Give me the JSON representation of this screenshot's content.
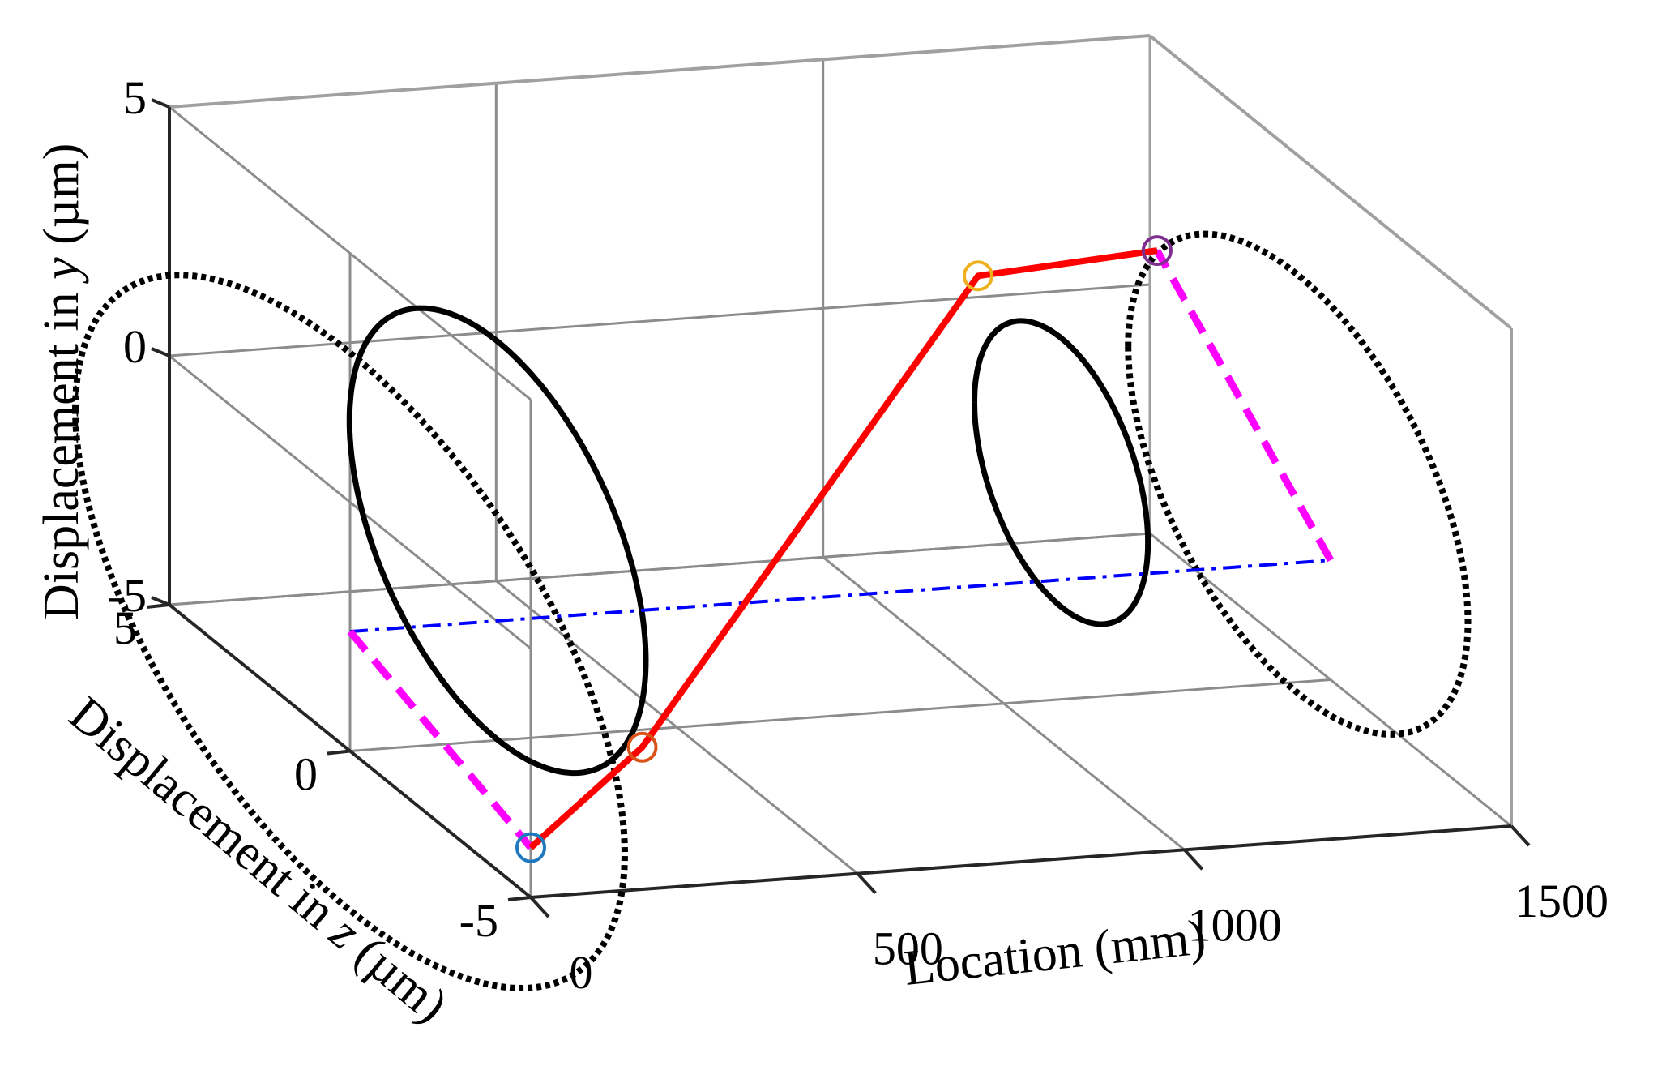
{
  "chart_data": {
    "type": "line3d",
    "title": "",
    "axes": {
      "x": {
        "label": "Location (mm)",
        "range": [
          0,
          1500
        ],
        "ticks": [
          0,
          500,
          1000,
          1500
        ],
        "tick_labels": [
          "0",
          "500",
          "1000",
          "1500"
        ]
      },
      "y": {
        "label_prefix": "Displacement in ",
        "label_var": "y",
        "label_suffix": " (µm)",
        "range": [
          -5,
          5
        ],
        "ticks": [
          -5,
          0,
          5
        ],
        "tick_labels": [
          "-5",
          "0",
          "5"
        ]
      },
      "z": {
        "label_prefix": "Displacement in ",
        "label_var": "z",
        "label_suffix": " (µm)",
        "range": [
          -5,
          5
        ],
        "ticks": [
          -5,
          0,
          5
        ],
        "tick_labels": [
          "-5",
          "0",
          "5"
        ]
      }
    },
    "grid": true,
    "series": [
      {
        "id": "centerline",
        "style": "dash-dot",
        "color": "#0000ff",
        "points": [
          [
            0,
            -2.6,
            0
          ],
          [
            1500,
            -2.6,
            0
          ]
        ]
      },
      {
        "id": "magenta-left",
        "style": "dashed",
        "color": "#ff00ff",
        "points": [
          [
            0,
            -2.6,
            0
          ],
          [
            0,
            -4.0,
            -5.0
          ]
        ]
      },
      {
        "id": "magenta-right",
        "style": "dashed",
        "color": "#ff00ff",
        "points": [
          [
            1500,
            -2.6,
            0
          ],
          [
            1500,
            0.8,
            4.8
          ]
        ]
      },
      {
        "id": "deflection",
        "style": "solid",
        "color": "#ff0000",
        "points": [
          [
            0,
            -4.0,
            -5.0
          ],
          [
            270,
            -3.3,
            -3.2
          ],
          [
            1110,
            1.9,
            2.7
          ],
          [
            1500,
            0.8,
            4.8
          ]
        ]
      }
    ],
    "orbits": [
      {
        "id": "orbit-0",
        "x": 0,
        "style": "dotted",
        "center": [
          -2.6,
          0
        ],
        "ry": 5.6,
        "rz": 7.6,
        "color": "#000000"
      },
      {
        "id": "orbit-270",
        "x": 270,
        "style": "solid",
        "center": [
          -1.5,
          0.8
        ],
        "ry": 4.0,
        "rz": 4.1,
        "color": "#000000"
      },
      {
        "id": "orbit-1110",
        "x": 1110,
        "style": "solid",
        "center": [
          -0.7,
          0.4
        ],
        "ry": 2.7,
        "rz": 2.4,
        "color": "#000000"
      },
      {
        "id": "orbit-1500",
        "x": 1500,
        "style": "dotted",
        "center": [
          -1.6,
          0.9
        ],
        "ry": 4.2,
        "rz": 4.7,
        "color": "#000000"
      }
    ],
    "markers": [
      {
        "x": 0,
        "y": -4.0,
        "z": -5.0,
        "color": "#1f77bd"
      },
      {
        "x": 270,
        "y": -3.3,
        "z": -3.2,
        "color": "#d95319"
      },
      {
        "x": 1110,
        "y": 1.9,
        "z": 2.7,
        "color": "#edb120"
      },
      {
        "x": 1500,
        "y": 0.8,
        "z": 4.8,
        "color": "#7e2f8e"
      }
    ]
  }
}
